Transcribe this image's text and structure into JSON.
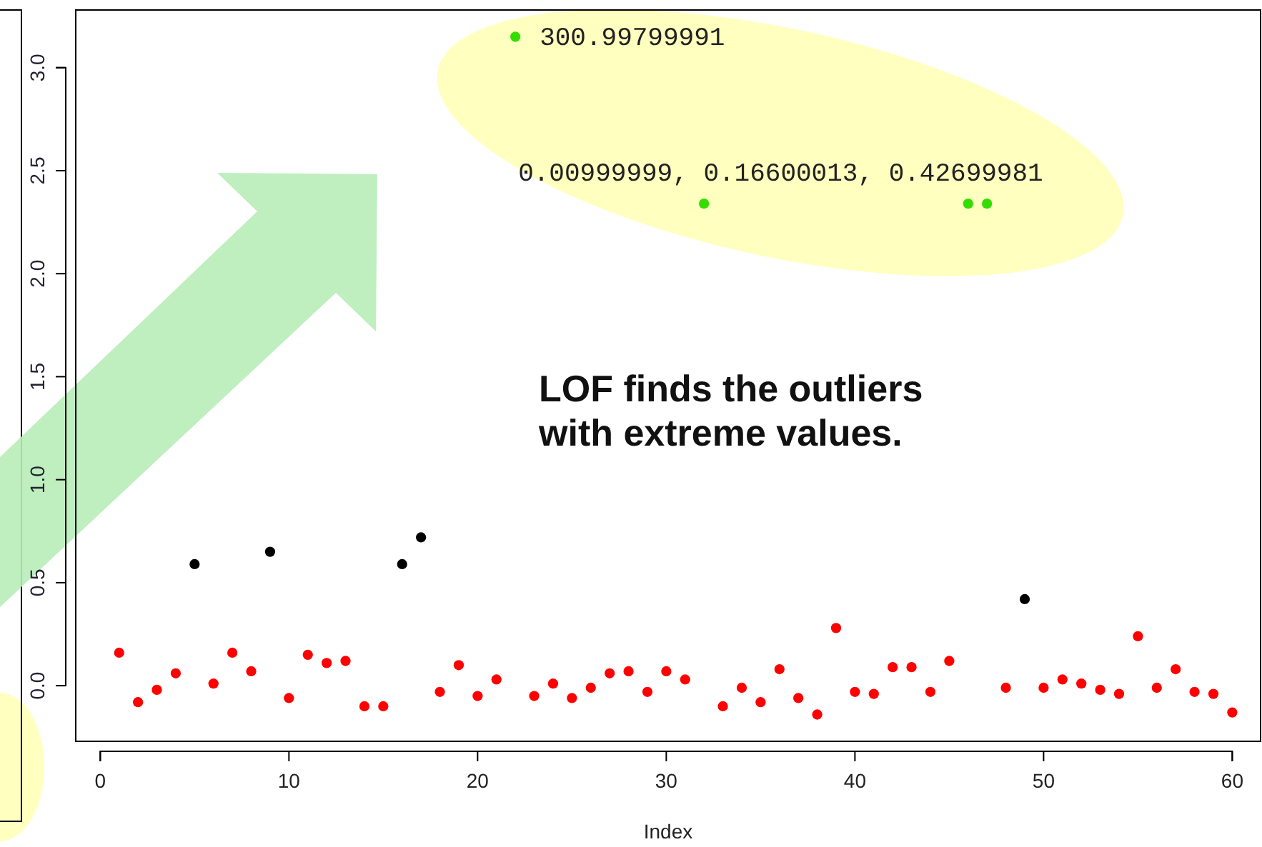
{
  "chart_data": {
    "type": "scatter",
    "xlabel": "Index",
    "marker": "circle",
    "xlim": [
      -1.3,
      61.5
    ],
    "ylim": [
      -0.27,
      3.28
    ],
    "xticks": [
      0,
      10,
      20,
      30,
      40,
      50,
      60
    ],
    "yticks": [
      {
        "value": 0,
        "label": "0.0"
      },
      {
        "value": 0.5,
        "label": "0.5"
      },
      {
        "value": 1,
        "label": "1.0"
      },
      {
        "value": 1.5,
        "label": "1.5"
      },
      {
        "value": 2,
        "label": "2.0"
      },
      {
        "value": 2.5,
        "label": "2.5"
      },
      {
        "value": 3,
        "label": "3.0"
      }
    ],
    "series": [
      {
        "color": "#ff0000",
        "x": [
          1,
          2,
          3,
          4,
          6,
          7,
          8,
          10,
          11,
          12,
          13,
          14,
          15,
          18,
          19,
          20,
          21,
          23,
          24,
          25,
          26,
          27,
          28,
          29,
          30,
          31,
          33,
          34,
          35,
          36,
          37,
          38,
          39,
          40,
          41,
          42,
          43,
          44,
          45,
          48,
          50,
          51,
          52,
          53,
          54,
          55,
          56,
          57,
          58,
          59,
          60
        ],
        "values": [
          0.16,
          -0.08,
          -0.02,
          0.06,
          0.01,
          0.16,
          0.07,
          -0.06,
          0.15,
          0.11,
          0.12,
          -0.1,
          -0.1,
          -0.03,
          0.1,
          -0.05,
          0.03,
          -0.05,
          0.01,
          -0.06,
          -0.01,
          0.06,
          0.07,
          -0.03,
          0.07,
          0.03,
          -0.1,
          -0.01,
          -0.08,
          0.08,
          -0.06,
          -0.14,
          0.28,
          -0.03,
          -0.04,
          0.09,
          0.09,
          -0.03,
          0.12,
          -0.01,
          -0.01,
          0.03,
          0.01,
          -0.02,
          -0.04,
          0.24,
          -0.01,
          0.08,
          -0.03,
          -0.04,
          -0.13
        ]
      },
      {
        "color": "#000000",
        "x": [
          5,
          9,
          16,
          17,
          49
        ],
        "values": [
          0.59,
          0.65,
          0.59,
          0.72,
          0.42
        ]
      },
      {
        "color": "#33dd00",
        "x": [
          22,
          32,
          46,
          47
        ],
        "values": [
          3.15,
          2.34,
          2.34,
          2.34
        ]
      }
    ],
    "annotations": [
      {
        "text": "300.99799991",
        "x": 22,
        "y": 3.15
      },
      {
        "text": "0.00999999, 0.16600013, 0.42699981",
        "x": 32,
        "y": 2.34
      },
      "LOF finds the outliers with extreme values."
    ]
  }
}
